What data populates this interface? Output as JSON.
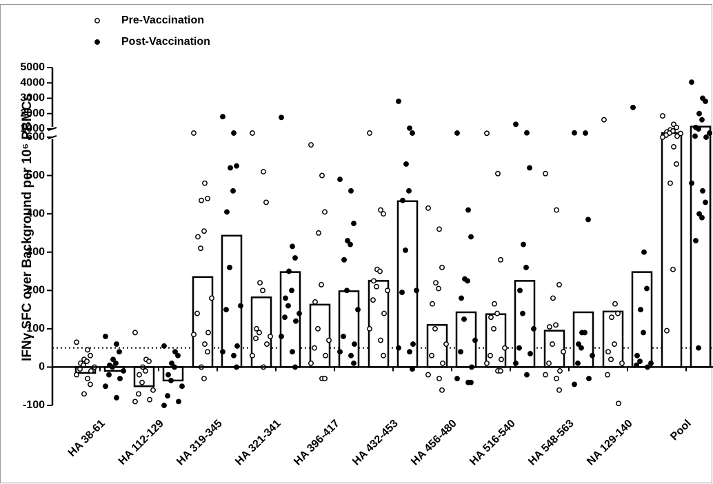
{
  "chart_data": {
    "type": "bar-scatter",
    "y_label": "IFNγ SFC over Background per 10⁶ PBMCs",
    "categories": [
      "HA 38-61",
      "HA 112-129",
      "HA 319-345",
      "HA 321-341",
      "HA 396-417",
      "HA 432-453",
      "HA 456-480",
      "HA 516-540",
      "HA 548-563",
      "NA 129-140",
      "Pool"
    ],
    "ylim": [
      -100,
      5000
    ],
    "ybreak": [
      600,
      1000
    ],
    "yticks": [
      -100,
      0,
      100,
      200,
      300,
      400,
      500,
      600,
      1000,
      2000,
      3000,
      4000,
      5000
    ],
    "reference_line": 50,
    "legend": "top-left",
    "series": [
      {
        "name": "Pre-Vaccination",
        "color": "#000000",
        "marker": "open",
        "bars": [
          -15,
          -50,
          235,
          182,
          163,
          225,
          110,
          138,
          95,
          145,
          800
        ],
        "values": [
          [
            65,
            45,
            30,
            20,
            15,
            10,
            5,
            0,
            -5,
            -10,
            -20,
            -30,
            -45,
            -70
          ],
          [
            90,
            20,
            15,
            0,
            -10,
            -20,
            -40,
            -60,
            -70,
            -85,
            -90
          ],
          [
            800,
            480,
            440,
            435,
            355,
            340,
            310,
            180,
            140,
            90,
            85,
            60,
            40,
            0,
            -30
          ],
          [
            800,
            510,
            430,
            220,
            200,
            100,
            90,
            80,
            75,
            60,
            30,
            0
          ],
          [
            580,
            500,
            405,
            350,
            215,
            170,
            100,
            70,
            50,
            30,
            10,
            -30,
            -30
          ],
          [
            800,
            410,
            400,
            255,
            250,
            225,
            210,
            200,
            175,
            140,
            100,
            70,
            30
          ],
          [
            415,
            360,
            260,
            220,
            205,
            165,
            100,
            60,
            30,
            10,
            -20,
            -30,
            -60
          ],
          [
            790,
            505,
            280,
            165,
            140,
            130,
            100,
            50,
            30,
            20,
            10,
            -10,
            -10
          ],
          [
            505,
            410,
            215,
            180,
            110,
            105,
            60,
            40,
            10,
            -10,
            -20,
            -30,
            -60
          ],
          [
            1600,
            165,
            140,
            130,
            60,
            40,
            20,
            10,
            -20,
            -95
          ],
          [
            1850,
            1300,
            1100,
            950,
            900,
            850,
            800,
            780,
            700,
            650,
            600,
            575,
            530,
            480,
            255,
            95
          ]
        ]
      },
      {
        "name": "Post-Vaccination",
        "color": "#000000",
        "marker": "filled",
        "bars": [
          -10,
          -35,
          343,
          248,
          198,
          433,
          143,
          225,
          143,
          248,
          1150
        ],
        "values": [
          [
            80,
            60,
            40,
            20,
            10,
            5,
            0,
            -10,
            -20,
            -30,
            -50,
            -80
          ],
          [
            55,
            40,
            30,
            10,
            0,
            -20,
            -35,
            -50,
            -75,
            -90,
            -100
          ],
          [
            1800,
            800,
            525,
            520,
            460,
            405,
            260,
            160,
            150,
            55,
            40,
            30,
            0
          ],
          [
            1750,
            315,
            285,
            250,
            200,
            180,
            160,
            140,
            130,
            120,
            80,
            40,
            0
          ],
          [
            490,
            460,
            375,
            330,
            320,
            280,
            200,
            150,
            80,
            60,
            40,
            30,
            10
          ],
          [
            2800,
            1050,
            800,
            530,
            460,
            435,
            305,
            200,
            195,
            60,
            50,
            40,
            -5
          ],
          [
            800,
            410,
            340,
            230,
            225,
            180,
            125,
            70,
            40,
            0,
            -30,
            -40,
            -40
          ],
          [
            1300,
            810,
            520,
            320,
            260,
            200,
            140,
            100,
            50,
            35,
            10,
            -20
          ],
          [
            810,
            800,
            385,
            90,
            90,
            60,
            50,
            30,
            10,
            -30,
            -45
          ],
          [
            2400,
            300,
            205,
            150,
            90,
            30,
            15,
            10,
            5,
            0
          ],
          [
            4050,
            3000,
            2800,
            2000,
            1600,
            1100,
            1000,
            800,
            650,
            600,
            480,
            460,
            430,
            400,
            390,
            330,
            50
          ]
        ]
      }
    ]
  }
}
